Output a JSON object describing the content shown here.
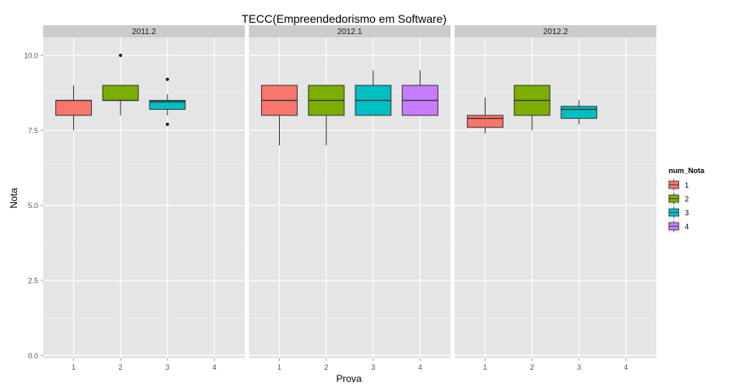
{
  "chart_data": {
    "type": "boxplot",
    "title": "TECC(Empreendedorismo em Software)",
    "xlabel": "Prova",
    "ylabel": "Nota",
    "ylim": [
      -0.1,
      10.6
    ],
    "yticks": [
      "0.0",
      "2.5",
      "5.0",
      "7.5",
      "10.0"
    ],
    "ytick_values": [
      0,
      2.5,
      5,
      7.5,
      10
    ],
    "xticks": [
      "1",
      "2",
      "3",
      "4"
    ],
    "grid": true,
    "legend": {
      "title": "num_Nota",
      "position": "right",
      "entries": [
        {
          "label": "1",
          "color": "#F8766D"
        },
        {
          "label": "2",
          "color": "#7CAE00"
        },
        {
          "label": "3",
          "color": "#00BFC4"
        },
        {
          "label": "4",
          "color": "#C77CFF"
        }
      ]
    },
    "facets": [
      {
        "label": "2011.2",
        "boxes": [
          {
            "x": "1",
            "group": "1",
            "whisker_low": 7.5,
            "q1": 8.0,
            "median": 8.5,
            "q3": 8.5,
            "whisker_high": 9.0,
            "outliers": []
          },
          {
            "x": "2",
            "group": "2",
            "whisker_low": 8.0,
            "q1": 8.5,
            "median": 8.5,
            "q3": 9.0,
            "whisker_high": 9.0,
            "outliers": [
              10.0
            ]
          },
          {
            "x": "3",
            "group": "3",
            "whisker_low": 8.0,
            "q1": 8.2,
            "median": 8.45,
            "q3": 8.5,
            "whisker_high": 8.7,
            "outliers": [
              9.2,
              7.7
            ]
          }
        ]
      },
      {
        "label": "2012.1",
        "boxes": [
          {
            "x": "1",
            "group": "1",
            "whisker_low": 7.0,
            "q1": 8.0,
            "median": 8.5,
            "q3": 9.0,
            "whisker_high": 9.0,
            "outliers": []
          },
          {
            "x": "2",
            "group": "2",
            "whisker_low": 7.0,
            "q1": 8.0,
            "median": 8.5,
            "q3": 9.0,
            "whisker_high": 9.0,
            "outliers": []
          },
          {
            "x": "3",
            "group": "3",
            "whisker_low": 8.0,
            "q1": 8.0,
            "median": 8.5,
            "q3": 9.0,
            "whisker_high": 9.5,
            "outliers": []
          },
          {
            "x": "4",
            "group": "4",
            "whisker_low": 8.0,
            "q1": 8.0,
            "median": 8.5,
            "q3": 9.0,
            "whisker_high": 9.5,
            "outliers": []
          }
        ]
      },
      {
        "label": "2012.2",
        "boxes": [
          {
            "x": "1",
            "group": "1",
            "whisker_low": 7.4,
            "q1": 7.6,
            "median": 7.9,
            "q3": 8.0,
            "whisker_high": 8.6,
            "outliers": []
          },
          {
            "x": "2",
            "group": "2",
            "whisker_low": 7.5,
            "q1": 8.0,
            "median": 8.5,
            "q3": 9.0,
            "whisker_high": 9.0,
            "outliers": []
          },
          {
            "x": "3",
            "group": "3",
            "whisker_low": 7.7,
            "q1": 7.9,
            "median": 8.2,
            "q3": 8.3,
            "whisker_high": 8.5,
            "outliers": []
          }
        ]
      }
    ]
  }
}
